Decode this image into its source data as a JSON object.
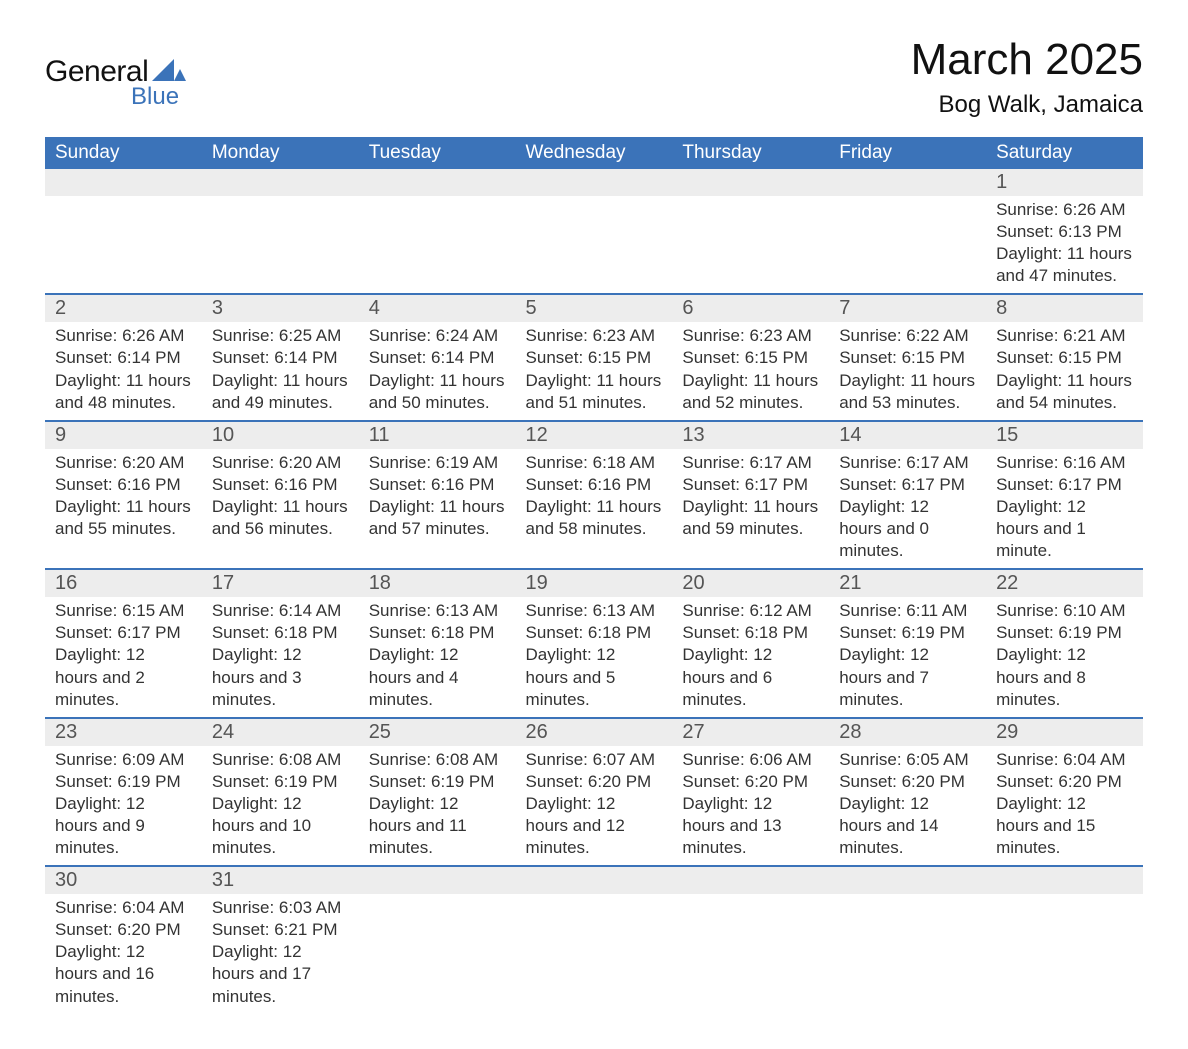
{
  "logo": {
    "text_general": "General",
    "text_blue": "Blue",
    "mark_color": "#3b73b9"
  },
  "title": "March 2025",
  "location": "Bog Walk, Jamaica",
  "header_bg": "#3b73b9",
  "header_fg": "#ffffff",
  "daynum_bg": "#ededed",
  "border_color": "#3b73b9",
  "weekdays": [
    "Sunday",
    "Monday",
    "Tuesday",
    "Wednesday",
    "Thursday",
    "Friday",
    "Saturday"
  ],
  "weeks": [
    [
      null,
      null,
      null,
      null,
      null,
      null,
      {
        "day": "1",
        "sunrise": "Sunrise: 6:26 AM",
        "sunset": "Sunset: 6:13 PM",
        "daylight": "Daylight: 11 hours and 47 minutes."
      }
    ],
    [
      {
        "day": "2",
        "sunrise": "Sunrise: 6:26 AM",
        "sunset": "Sunset: 6:14 PM",
        "daylight": "Daylight: 11 hours and 48 minutes."
      },
      {
        "day": "3",
        "sunrise": "Sunrise: 6:25 AM",
        "sunset": "Sunset: 6:14 PM",
        "daylight": "Daylight: 11 hours and 49 minutes."
      },
      {
        "day": "4",
        "sunrise": "Sunrise: 6:24 AM",
        "sunset": "Sunset: 6:14 PM",
        "daylight": "Daylight: 11 hours and 50 minutes."
      },
      {
        "day": "5",
        "sunrise": "Sunrise: 6:23 AM",
        "sunset": "Sunset: 6:15 PM",
        "daylight": "Daylight: 11 hours and 51 minutes."
      },
      {
        "day": "6",
        "sunrise": "Sunrise: 6:23 AM",
        "sunset": "Sunset: 6:15 PM",
        "daylight": "Daylight: 11 hours and 52 minutes."
      },
      {
        "day": "7",
        "sunrise": "Sunrise: 6:22 AM",
        "sunset": "Sunset: 6:15 PM",
        "daylight": "Daylight: 11 hours and 53 minutes."
      },
      {
        "day": "8",
        "sunrise": "Sunrise: 6:21 AM",
        "sunset": "Sunset: 6:15 PM",
        "daylight": "Daylight: 11 hours and 54 minutes."
      }
    ],
    [
      {
        "day": "9",
        "sunrise": "Sunrise: 6:20 AM",
        "sunset": "Sunset: 6:16 PM",
        "daylight": "Daylight: 11 hours and 55 minutes."
      },
      {
        "day": "10",
        "sunrise": "Sunrise: 6:20 AM",
        "sunset": "Sunset: 6:16 PM",
        "daylight": "Daylight: 11 hours and 56 minutes."
      },
      {
        "day": "11",
        "sunrise": "Sunrise: 6:19 AM",
        "sunset": "Sunset: 6:16 PM",
        "daylight": "Daylight: 11 hours and 57 minutes."
      },
      {
        "day": "12",
        "sunrise": "Sunrise: 6:18 AM",
        "sunset": "Sunset: 6:16 PM",
        "daylight": "Daylight: 11 hours and 58 minutes."
      },
      {
        "day": "13",
        "sunrise": "Sunrise: 6:17 AM",
        "sunset": "Sunset: 6:17 PM",
        "daylight": "Daylight: 11 hours and 59 minutes."
      },
      {
        "day": "14",
        "sunrise": "Sunrise: 6:17 AM",
        "sunset": "Sunset: 6:17 PM",
        "daylight": "Daylight: 12 hours and 0 minutes."
      },
      {
        "day": "15",
        "sunrise": "Sunrise: 6:16 AM",
        "sunset": "Sunset: 6:17 PM",
        "daylight": "Daylight: 12 hours and 1 minute."
      }
    ],
    [
      {
        "day": "16",
        "sunrise": "Sunrise: 6:15 AM",
        "sunset": "Sunset: 6:17 PM",
        "daylight": "Daylight: 12 hours and 2 minutes."
      },
      {
        "day": "17",
        "sunrise": "Sunrise: 6:14 AM",
        "sunset": "Sunset: 6:18 PM",
        "daylight": "Daylight: 12 hours and 3 minutes."
      },
      {
        "day": "18",
        "sunrise": "Sunrise: 6:13 AM",
        "sunset": "Sunset: 6:18 PM",
        "daylight": "Daylight: 12 hours and 4 minutes."
      },
      {
        "day": "19",
        "sunrise": "Sunrise: 6:13 AM",
        "sunset": "Sunset: 6:18 PM",
        "daylight": "Daylight: 12 hours and 5 minutes."
      },
      {
        "day": "20",
        "sunrise": "Sunrise: 6:12 AM",
        "sunset": "Sunset: 6:18 PM",
        "daylight": "Daylight: 12 hours and 6 minutes."
      },
      {
        "day": "21",
        "sunrise": "Sunrise: 6:11 AM",
        "sunset": "Sunset: 6:19 PM",
        "daylight": "Daylight: 12 hours and 7 minutes."
      },
      {
        "day": "22",
        "sunrise": "Sunrise: 6:10 AM",
        "sunset": "Sunset: 6:19 PM",
        "daylight": "Daylight: 12 hours and 8 minutes."
      }
    ],
    [
      {
        "day": "23",
        "sunrise": "Sunrise: 6:09 AM",
        "sunset": "Sunset: 6:19 PM",
        "daylight": "Daylight: 12 hours and 9 minutes."
      },
      {
        "day": "24",
        "sunrise": "Sunrise: 6:08 AM",
        "sunset": "Sunset: 6:19 PM",
        "daylight": "Daylight: 12 hours and 10 minutes."
      },
      {
        "day": "25",
        "sunrise": "Sunrise: 6:08 AM",
        "sunset": "Sunset: 6:19 PM",
        "daylight": "Daylight: 12 hours and 11 minutes."
      },
      {
        "day": "26",
        "sunrise": "Sunrise: 6:07 AM",
        "sunset": "Sunset: 6:20 PM",
        "daylight": "Daylight: 12 hours and 12 minutes."
      },
      {
        "day": "27",
        "sunrise": "Sunrise: 6:06 AM",
        "sunset": "Sunset: 6:20 PM",
        "daylight": "Daylight: 12 hours and 13 minutes."
      },
      {
        "day": "28",
        "sunrise": "Sunrise: 6:05 AM",
        "sunset": "Sunset: 6:20 PM",
        "daylight": "Daylight: 12 hours and 14 minutes."
      },
      {
        "day": "29",
        "sunrise": "Sunrise: 6:04 AM",
        "sunset": "Sunset: 6:20 PM",
        "daylight": "Daylight: 12 hours and 15 minutes."
      }
    ],
    [
      {
        "day": "30",
        "sunrise": "Sunrise: 6:04 AM",
        "sunset": "Sunset: 6:20 PM",
        "daylight": "Daylight: 12 hours and 16 minutes."
      },
      {
        "day": "31",
        "sunrise": "Sunrise: 6:03 AM",
        "sunset": "Sunset: 6:21 PM",
        "daylight": "Daylight: 12 hours and 17 minutes."
      },
      null,
      null,
      null,
      null,
      null
    ]
  ]
}
